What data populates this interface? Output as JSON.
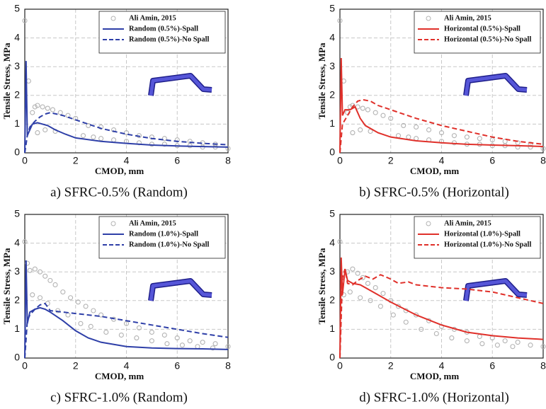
{
  "chart_data": [
    {
      "type": "line",
      "caption": "a) SFRC-0.5% (Random)",
      "xlabel": "CMOD, mm",
      "ylabel": "Tensile Stress, MPa",
      "xlim": [
        0,
        8
      ],
      "ylim": [
        0,
        5
      ],
      "xticks": [
        0,
        2,
        4,
        6,
        8
      ],
      "yticks": [
        0,
        1,
        2,
        3,
        4,
        5
      ],
      "grid": true,
      "legend": "upper right",
      "series": [
        {
          "name": "Ali Amin, 2015",
          "style": "markers",
          "color": "#b3b3b3",
          "x": [
            0,
            0.15,
            0.3,
            0.4,
            0.5,
            0.7,
            0.9,
            1.1,
            1.4,
            1.7,
            2,
            0.5,
            0.8,
            1.2,
            2.3,
            2.7,
            3,
            3.5,
            4,
            4.5,
            5,
            5.5,
            6,
            6.5,
            7,
            7.5,
            8,
            2.5,
            3,
            3.5,
            4,
            4.5,
            5,
            5.5,
            6,
            6.5,
            7,
            7.5
          ],
          "values": [
            4.6,
            2.5,
            1.4,
            1.6,
            1.65,
            1.6,
            1.55,
            1.5,
            1.4,
            1.3,
            1.2,
            0.7,
            0.8,
            0.75,
            0.6,
            0.55,
            0.5,
            0.45,
            0.4,
            0.35,
            0.3,
            0.3,
            0.25,
            0.25,
            0.2,
            0.2,
            0.15,
            0.95,
            0.9,
            0.8,
            0.7,
            0.6,
            0.55,
            0.5,
            0.45,
            0.4,
            0.35,
            0.3
          ]
        },
        {
          "name": "Random (0.5%)-Spall",
          "style": "solid",
          "color": "#2e3fa8",
          "x": [
            0,
            0.05,
            0.1,
            0.2,
            0.3,
            0.5,
            0.7,
            0.9,
            1.2,
            1.6,
            2,
            3,
            4,
            5,
            6,
            7,
            8
          ],
          "values": [
            0,
            3.2,
            0.6,
            0.8,
            1.0,
            1.05,
            1.0,
            0.95,
            0.8,
            0.65,
            0.52,
            0.4,
            0.33,
            0.27,
            0.24,
            0.22,
            0.2
          ]
        },
        {
          "name": "Random (0.5%)-No Spall",
          "style": "dashed",
          "color": "#2e3fa8",
          "x": [
            0,
            0.1,
            0.2,
            0.4,
            0.6,
            0.8,
            1,
            1.5,
            2,
            3,
            4,
            5,
            6,
            7,
            8
          ],
          "values": [
            0,
            0.6,
            0.9,
            1.1,
            1.25,
            1.35,
            1.4,
            1.3,
            1.15,
            0.85,
            0.65,
            0.5,
            0.4,
            0.33,
            0.28
          ]
        }
      ]
    },
    {
      "type": "line",
      "caption": "b) SFRC-0.5% (Horizontal)",
      "xlabel": "CMOD, mm",
      "ylabel": "Tensile Stress, MPa",
      "xlim": [
        0,
        8
      ],
      "ylim": [
        0,
        5
      ],
      "xticks": [
        0,
        2,
        4,
        6,
        8
      ],
      "yticks": [
        0,
        1,
        2,
        3,
        4,
        5
      ],
      "grid": true,
      "legend": "upper right",
      "series": [
        {
          "name": "Ali Amin, 2015",
          "style": "markers",
          "color": "#b3b3b3",
          "x": [
            0,
            0.15,
            0.3,
            0.4,
            0.5,
            0.7,
            0.9,
            1.1,
            1.4,
            1.7,
            2,
            0.5,
            0.8,
            1.2,
            2.3,
            2.7,
            3,
            3.5,
            4,
            4.5,
            5,
            5.5,
            6,
            6.5,
            7,
            7.5,
            8,
            2.5,
            3,
            3.5,
            4,
            4.5,
            5,
            5.5,
            6,
            6.5,
            7,
            7.5
          ],
          "values": [
            4.6,
            2.5,
            1.4,
            1.6,
            1.65,
            1.6,
            1.55,
            1.5,
            1.4,
            1.3,
            1.2,
            0.7,
            0.8,
            0.75,
            0.6,
            0.55,
            0.5,
            0.45,
            0.4,
            0.35,
            0.3,
            0.3,
            0.25,
            0.25,
            0.2,
            0.2,
            0.15,
            0.95,
            0.9,
            0.8,
            0.7,
            0.6,
            0.55,
            0.5,
            0.45,
            0.4,
            0.35,
            0.3
          ]
        },
        {
          "name": "Horizontal (0.5%)-Spall",
          "style": "solid",
          "color": "#e0302a",
          "x": [
            0,
            0.05,
            0.1,
            0.2,
            0.4,
            0.6,
            0.8,
            1,
            1.5,
            2,
            3,
            4,
            5,
            6,
            7,
            8
          ],
          "values": [
            0,
            3.3,
            1.3,
            1.5,
            1.5,
            1.6,
            1.2,
            0.95,
            0.7,
            0.55,
            0.42,
            0.35,
            0.3,
            0.27,
            0.25,
            0.22
          ]
        },
        {
          "name": "Horizontal (0.5%)-No Spall",
          "style": "dashed",
          "color": "#e0302a",
          "x": [
            0,
            0.1,
            0.3,
            0.5,
            0.7,
            0.9,
            1.2,
            1.5,
            2,
            3,
            4,
            5,
            6,
            7,
            8
          ],
          "values": [
            0,
            1.0,
            1.3,
            1.6,
            1.8,
            1.85,
            1.8,
            1.65,
            1.5,
            1.2,
            0.95,
            0.75,
            0.55,
            0.4,
            0.3
          ]
        }
      ]
    },
    {
      "type": "line",
      "caption": "c) SFRC-1.0% (Random)",
      "xlabel": "CMOD, mm",
      "ylabel": "Tensile Stress, MPa",
      "xlim": [
        0,
        8
      ],
      "ylim": [
        0,
        5
      ],
      "xticks": [
        0,
        2,
        4,
        6,
        8
      ],
      "yticks": [
        0,
        1,
        2,
        3,
        4,
        5
      ],
      "grid": true,
      "legend": "upper right",
      "series": [
        {
          "name": "Ali Amin, 2015",
          "style": "markers",
          "color": "#b3b3b3",
          "x": [
            0,
            0.1,
            0.2,
            0.4,
            0.6,
            0.8,
            1,
            1.2,
            1.5,
            1.8,
            2.1,
            2.4,
            2.7,
            3,
            3.5,
            4,
            4.5,
            5,
            5.5,
            6,
            6.5,
            7,
            7.5,
            8,
            0.3,
            0.6,
            0.9,
            1.3,
            1.7,
            2.2,
            2.6,
            3.2,
            3.8,
            4.4,
            5,
            5.6,
            6.2,
            6.8,
            7.4
          ],
          "values": [
            4.05,
            3.3,
            3.05,
            3.1,
            3.0,
            2.85,
            2.7,
            2.55,
            2.3,
            2.1,
            1.95,
            1.8,
            1.65,
            1.5,
            1.35,
            1.2,
            1.05,
            0.9,
            0.8,
            0.7,
            0.6,
            0.55,
            0.5,
            0.4,
            2.2,
            2.1,
            1.9,
            1.65,
            1.5,
            1.2,
            1.1,
            0.9,
            0.8,
            0.7,
            0.6,
            0.5,
            0.45,
            0.4,
            0.35
          ]
        },
        {
          "name": "Random (1.0%)-Spall",
          "style": "solid",
          "color": "#2e3fa8",
          "x": [
            0,
            0.05,
            0.1,
            0.2,
            0.4,
            0.6,
            0.8,
            1,
            1.5,
            2,
            2.5,
            3,
            4,
            5,
            6,
            7,
            8
          ],
          "values": [
            0,
            3.4,
            1.2,
            1.6,
            1.7,
            1.75,
            1.7,
            1.6,
            1.3,
            0.95,
            0.7,
            0.55,
            0.4,
            0.35,
            0.33,
            0.32,
            0.3
          ]
        },
        {
          "name": "Random (1.0%)-No Spall",
          "style": "dashed",
          "color": "#2e3fa8",
          "x": [
            0,
            0.1,
            0.2,
            0.4,
            0.6,
            0.8,
            1,
            1.5,
            2,
            3,
            4,
            5,
            6,
            7,
            8
          ],
          "values": [
            0,
            1.3,
            1.5,
            1.7,
            1.85,
            1.9,
            1.65,
            1.6,
            1.55,
            1.45,
            1.3,
            1.15,
            1.0,
            0.85,
            0.72
          ]
        }
      ]
    },
    {
      "type": "line",
      "caption": "d) SFRC-1.0% (Horizontal)",
      "xlabel": "CMOD, mm",
      "ylabel": "Tensile Stress, MPa",
      "xlim": [
        0,
        8
      ],
      "ylim": [
        0,
        5
      ],
      "xticks": [
        0,
        2,
        4,
        6,
        8
      ],
      "yticks": [
        0,
        1,
        2,
        3,
        4,
        5
      ],
      "grid": true,
      "legend": "upper right",
      "series": [
        {
          "name": "Ali Amin, 2015",
          "style": "markers",
          "color": "#b3b3b3",
          "x": [
            0,
            0.15,
            0.3,
            0.5,
            0.7,
            0.9,
            1.1,
            1.4,
            1.7,
            2,
            2.3,
            2.6,
            3,
            3.5,
            4,
            4.5,
            5,
            5.5,
            6,
            6.5,
            7,
            7.5,
            8,
            0.4,
            0.8,
            1.2,
            1.6,
            2.1,
            2.6,
            3.2,
            3.8,
            4.4,
            5,
            5.6,
            6.2,
            6.8
          ],
          "values": [
            4.05,
            2.2,
            3.0,
            3.1,
            2.95,
            2.8,
            2.6,
            2.45,
            2.25,
            2.0,
            1.8,
            1.65,
            1.5,
            1.3,
            1.1,
            1.0,
            0.9,
            0.75,
            0.7,
            0.6,
            0.55,
            0.45,
            0.4,
            2.3,
            2.1,
            2.0,
            1.8,
            1.5,
            1.25,
            1.0,
            0.85,
            0.7,
            0.6,
            0.5,
            0.45,
            0.4
          ]
        },
        {
          "name": "Horizontal (1.0%)-Spall",
          "style": "solid",
          "color": "#e0302a",
          "x": [
            0,
            0.05,
            0.1,
            0.2,
            0.3,
            0.5,
            0.8,
            1,
            1.5,
            2,
            3,
            4,
            5,
            6,
            7,
            8
          ],
          "values": [
            0,
            3.5,
            2.2,
            3.1,
            2.7,
            2.6,
            2.55,
            2.45,
            2.2,
            1.95,
            1.5,
            1.15,
            0.9,
            0.78,
            0.7,
            0.65
          ]
        },
        {
          "name": "Horizontal (1.0%)-No Spall",
          "style": "dashed",
          "color": "#e0302a",
          "x": [
            0,
            0.1,
            0.2,
            0.3,
            0.5,
            0.7,
            1,
            1.3,
            1.6,
            2,
            2.3,
            2.7,
            3,
            4,
            5,
            6,
            7,
            8
          ],
          "values": [
            0,
            2.8,
            3.1,
            2.6,
            2.55,
            2.7,
            2.85,
            2.75,
            2.9,
            2.75,
            2.6,
            2.65,
            2.55,
            2.45,
            2.4,
            2.3,
            2.1,
            1.9
          ]
        }
      ]
    }
  ]
}
